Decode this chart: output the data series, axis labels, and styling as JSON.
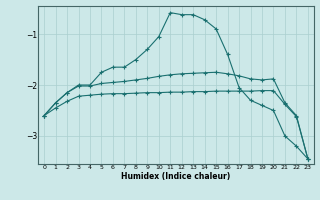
{
  "xlabel": "Humidex (Indice chaleur)",
  "bg_color": "#cce8e8",
  "grid_color": "#aacfcf",
  "line_color": "#1a7070",
  "xlim": [
    -0.5,
    23.5
  ],
  "ylim": [
    -3.55,
    -0.45
  ],
  "yticks": [
    -3,
    -2,
    -1
  ],
  "xticks": [
    0,
    1,
    2,
    3,
    4,
    5,
    6,
    7,
    8,
    9,
    10,
    11,
    12,
    13,
    14,
    15,
    16,
    17,
    18,
    19,
    20,
    21,
    22,
    23
  ],
  "line1_x": [
    0,
    1,
    2,
    3,
    4,
    5,
    6,
    7,
    8,
    9,
    10,
    11,
    12,
    13,
    14,
    15,
    16,
    17,
    18,
    19,
    20,
    21,
    22,
    23
  ],
  "line1_y": [
    -2.6,
    -2.35,
    -2.15,
    -2.0,
    -2.0,
    -1.75,
    -1.65,
    -1.65,
    -1.5,
    -1.3,
    -1.05,
    -0.58,
    -0.62,
    -0.62,
    -0.72,
    -0.9,
    -1.4,
    -2.05,
    -2.3,
    -2.4,
    -2.5,
    -3.0,
    -3.2,
    -3.45
  ],
  "line2_x": [
    0,
    1,
    2,
    3,
    4,
    5,
    6,
    7,
    8,
    9,
    10,
    11,
    12,
    13,
    14,
    15,
    16,
    17,
    18,
    19,
    20,
    21,
    22,
    23
  ],
  "line2_y": [
    -2.6,
    -2.35,
    -2.15,
    -2.02,
    -2.02,
    -1.97,
    -1.95,
    -1.93,
    -1.9,
    -1.87,
    -1.83,
    -1.8,
    -1.78,
    -1.77,
    -1.76,
    -1.75,
    -1.78,
    -1.82,
    -1.88,
    -1.9,
    -1.88,
    -2.35,
    -2.6,
    -3.45
  ],
  "line3_x": [
    0,
    1,
    2,
    3,
    4,
    5,
    6,
    7,
    8,
    9,
    10,
    11,
    12,
    13,
    14,
    15,
    16,
    17,
    18,
    19,
    20,
    21,
    22,
    23
  ],
  "line3_y": [
    -2.6,
    -2.45,
    -2.32,
    -2.22,
    -2.2,
    -2.18,
    -2.17,
    -2.17,
    -2.16,
    -2.15,
    -2.15,
    -2.14,
    -2.14,
    -2.13,
    -2.13,
    -2.12,
    -2.12,
    -2.12,
    -2.12,
    -2.11,
    -2.11,
    -2.38,
    -2.62,
    -3.45
  ]
}
